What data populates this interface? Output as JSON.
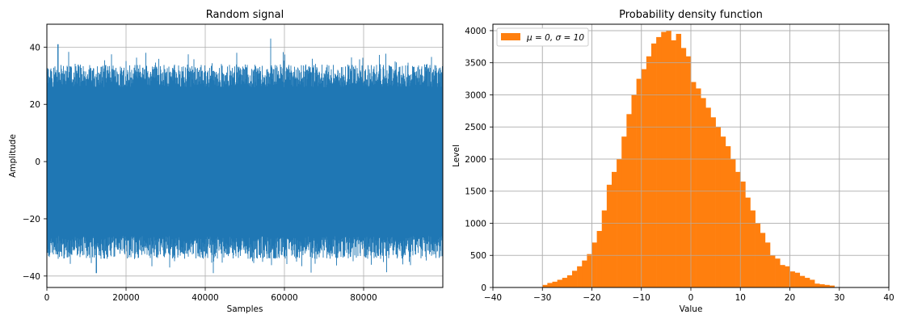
{
  "chart_data": [
    {
      "type": "line",
      "title": "Random signal",
      "xlabel": "Samples",
      "ylabel": "Amplitude",
      "xlim": [
        0,
        100000
      ],
      "ylim": [
        -44,
        48
      ],
      "xticks": [
        0,
        20000,
        40000,
        60000,
        80000
      ],
      "yticks": [
        -40,
        -20,
        0,
        20,
        40
      ],
      "grid": true,
      "color": "#1f77b4",
      "series": [
        {
          "envelope_upper_typical": 30,
          "envelope_lower_typical": -30,
          "peaks_upper": [
            {
              "x": 2800,
              "y": 41
            },
            {
              "x": 56500,
              "y": 43
            },
            {
              "x": 48000,
              "y": 38
            },
            {
              "x": 25000,
              "y": 38
            }
          ],
          "peaks_lower": [
            {
              "x": 12500,
              "y": -39
            },
            {
              "x": 42000,
              "y": -39
            },
            {
              "x": 31000,
              "y": -37
            }
          ]
        }
      ]
    },
    {
      "type": "bar",
      "title": "Probability density function",
      "xlabel": "Value",
      "ylabel": "Level",
      "xlim": [
        -40,
        40
      ],
      "ylim": [
        0,
        4100
      ],
      "xticks": [
        -40,
        -30,
        -20,
        -10,
        0,
        10,
        20,
        30,
        40
      ],
      "yticks": [
        0,
        500,
        1000,
        1500,
        2000,
        2500,
        3000,
        3500,
        4000
      ],
      "grid": true,
      "color": "#ff7f0e",
      "legend": {
        "label": "μ = 0, σ = 10",
        "placement": "top-left"
      },
      "bin_edges_start": -30,
      "bin_width": 1,
      "values": [
        40,
        70,
        90,
        120,
        150,
        190,
        260,
        330,
        420,
        520,
        700,
        880,
        1200,
        1600,
        1800,
        2000,
        2350,
        2700,
        3000,
        3250,
        3400,
        3600,
        3800,
        3900,
        3980,
        4000,
        3850,
        3950,
        3730,
        3600,
        3200,
        3100,
        2950,
        2800,
        2650,
        2500,
        2350,
        2200,
        2000,
        1800,
        1650,
        1400,
        1200,
        1000,
        850,
        700,
        500,
        450,
        350,
        330,
        250,
        230,
        180,
        150,
        120,
        60,
        50,
        40,
        30
      ]
    }
  ]
}
